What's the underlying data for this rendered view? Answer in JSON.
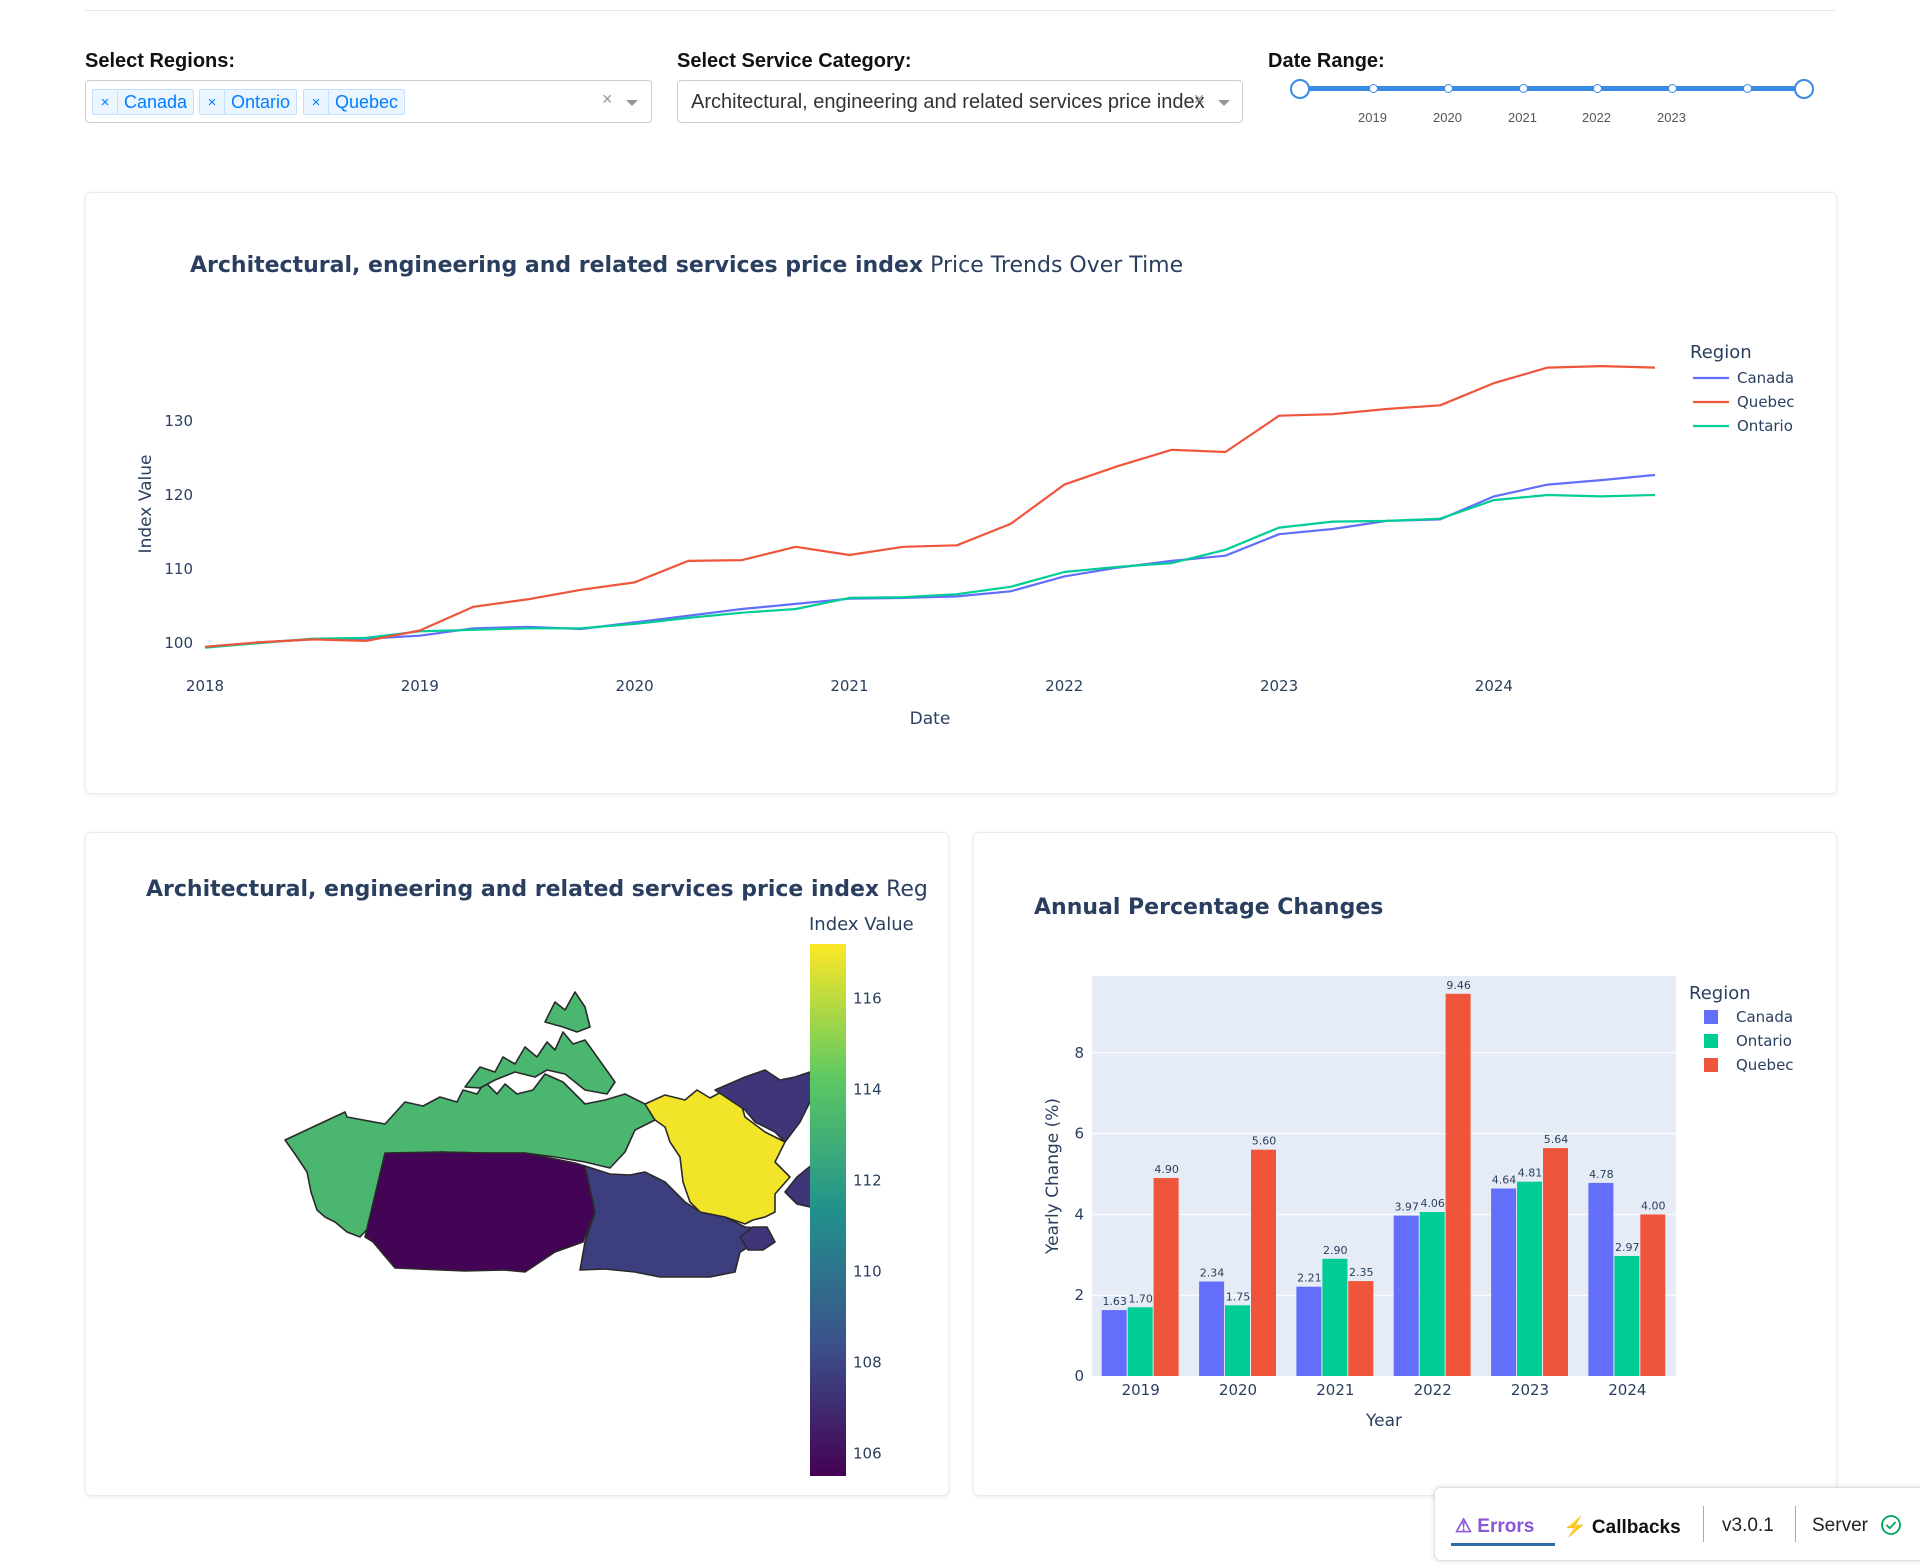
{
  "controls": {
    "regions_label": "Select Regions:",
    "regions_selected": [
      "Canada",
      "Ontario",
      "Quebec"
    ],
    "chip_remove": "×",
    "clear": "×",
    "category_label": "Select Service Category:",
    "category_value": "Architectural, engineering and related services price index",
    "date_label": "Date Range:",
    "date_marks": [
      "2019",
      "2020",
      "2021",
      "2022",
      "2023"
    ],
    "date_range": [
      2018,
      2025
    ]
  },
  "colors": {
    "canada": "#636efa",
    "quebec": "#ef553b",
    "ontario": "#00cc96",
    "slider": "#3a8be4"
  },
  "chart_data": [
    {
      "type": "line",
      "title_bold": "Architectural, engineering and related services price index",
      "title_rest": " Price Trends Over Time",
      "xlabel": "Date",
      "ylabel": "Index Value",
      "x_ticks": [
        "2018",
        "2019",
        "2020",
        "2021",
        "2022",
        "2023",
        "2024"
      ],
      "y_ticks": [
        100,
        110,
        120,
        130
      ],
      "xlim": [
        2018.0,
        2024.75
      ],
      "ylim": [
        98.8,
        142
      ],
      "legend_title": "Region",
      "legend_position": "right",
      "x": [
        2018.0,
        2018.25,
        2018.5,
        2018.75,
        2019.0,
        2019.25,
        2019.5,
        2019.75,
        2020.0,
        2020.25,
        2020.5,
        2020.75,
        2021.0,
        2021.25,
        2021.5,
        2021.75,
        2022.0,
        2022.25,
        2022.5,
        2022.75,
        2023.0,
        2023.25,
        2023.5,
        2023.75,
        2024.0,
        2024.25,
        2024.5,
        2024.75
      ],
      "series": [
        {
          "name": "Canada",
          "values": [
            99.5,
            100.1,
            100.5,
            100.6,
            101.0,
            102.0,
            102.2,
            101.9,
            102.8,
            103.7,
            104.6,
            105.3,
            106.0,
            106.1,
            106.3,
            107.0,
            109.0,
            110.2,
            111.1,
            111.8,
            114.7,
            115.4,
            116.5,
            116.7,
            119.8,
            121.4,
            122.0,
            122.7
          ]
        },
        {
          "name": "Quebec",
          "values": [
            99.5,
            100.1,
            100.5,
            100.3,
            101.7,
            104.9,
            105.9,
            107.2,
            108.2,
            111.1,
            111.2,
            113.0,
            111.9,
            113.0,
            113.2,
            116.1,
            121.4,
            123.9,
            126.1,
            125.8,
            130.7,
            130.9,
            131.6,
            132.1,
            135.1,
            137.2,
            137.4,
            137.2
          ]
        },
        {
          "name": "Ontario",
          "values": [
            99.4,
            100.0,
            100.6,
            100.7,
            101.6,
            101.8,
            102.0,
            102.0,
            102.6,
            103.4,
            104.1,
            104.6,
            106.1,
            106.2,
            106.6,
            107.6,
            109.6,
            110.3,
            110.8,
            112.6,
            115.6,
            116.4,
            116.5,
            116.8,
            119.3,
            120.0,
            119.8,
            120.0
          ]
        }
      ]
    },
    {
      "type": "heatmap",
      "subtype": "choropleth",
      "title_bold": "Architectural, engineering and related services price index",
      "title_rest": " Region",
      "colorbar_title": "Index Value",
      "colorbar_ticks": [
        106,
        108,
        110,
        112,
        114,
        116
      ],
      "color_range": [
        105.5,
        117.2
      ],
      "regions": [
        {
          "name": "Quebec",
          "value": 117.0
        },
        {
          "name": "West and North",
          "value": 113.3
        },
        {
          "name": "Ontario",
          "value": 107.7
        },
        {
          "name": "Prairies",
          "value": 105.6
        },
        {
          "name": "Atlantic",
          "value": 107.4
        }
      ]
    },
    {
      "type": "bar",
      "title": "Annual Percentage Changes",
      "xlabel": "Year",
      "ylabel": "Yearly Change (%)",
      "categories": [
        "2019",
        "2020",
        "2021",
        "2022",
        "2023",
        "2024"
      ],
      "y_ticks": [
        0,
        2,
        4,
        6,
        8
      ],
      "ylim": [
        0,
        9.9
      ],
      "legend_title": "Region",
      "legend_position": "right",
      "series": [
        {
          "name": "Canada",
          "values": [
            1.63,
            2.34,
            2.21,
            3.97,
            4.64,
            4.78
          ],
          "labels": [
            "1.63",
            "2.34",
            "2.21",
            "3.97",
            "4.64",
            "4.78"
          ]
        },
        {
          "name": "Ontario",
          "values": [
            1.7,
            1.75,
            2.9,
            4.06,
            4.81,
            2.97
          ],
          "labels": [
            "1.70",
            "1.75",
            "2.90",
            "4.06",
            "4.81",
            "2.97"
          ]
        },
        {
          "name": "Quebec",
          "values": [
            4.9,
            5.6,
            2.35,
            9.46,
            5.64,
            4.0
          ],
          "labels": [
            "4.90",
            "5.60",
            "2.35",
            "9.46",
            "5.64",
            "4.00"
          ]
        }
      ]
    }
  ],
  "debug": {
    "errors": "⚠ Errors",
    "callbacks": "⚡ Callbacks",
    "version": "v3.0.1",
    "server": "Server"
  }
}
